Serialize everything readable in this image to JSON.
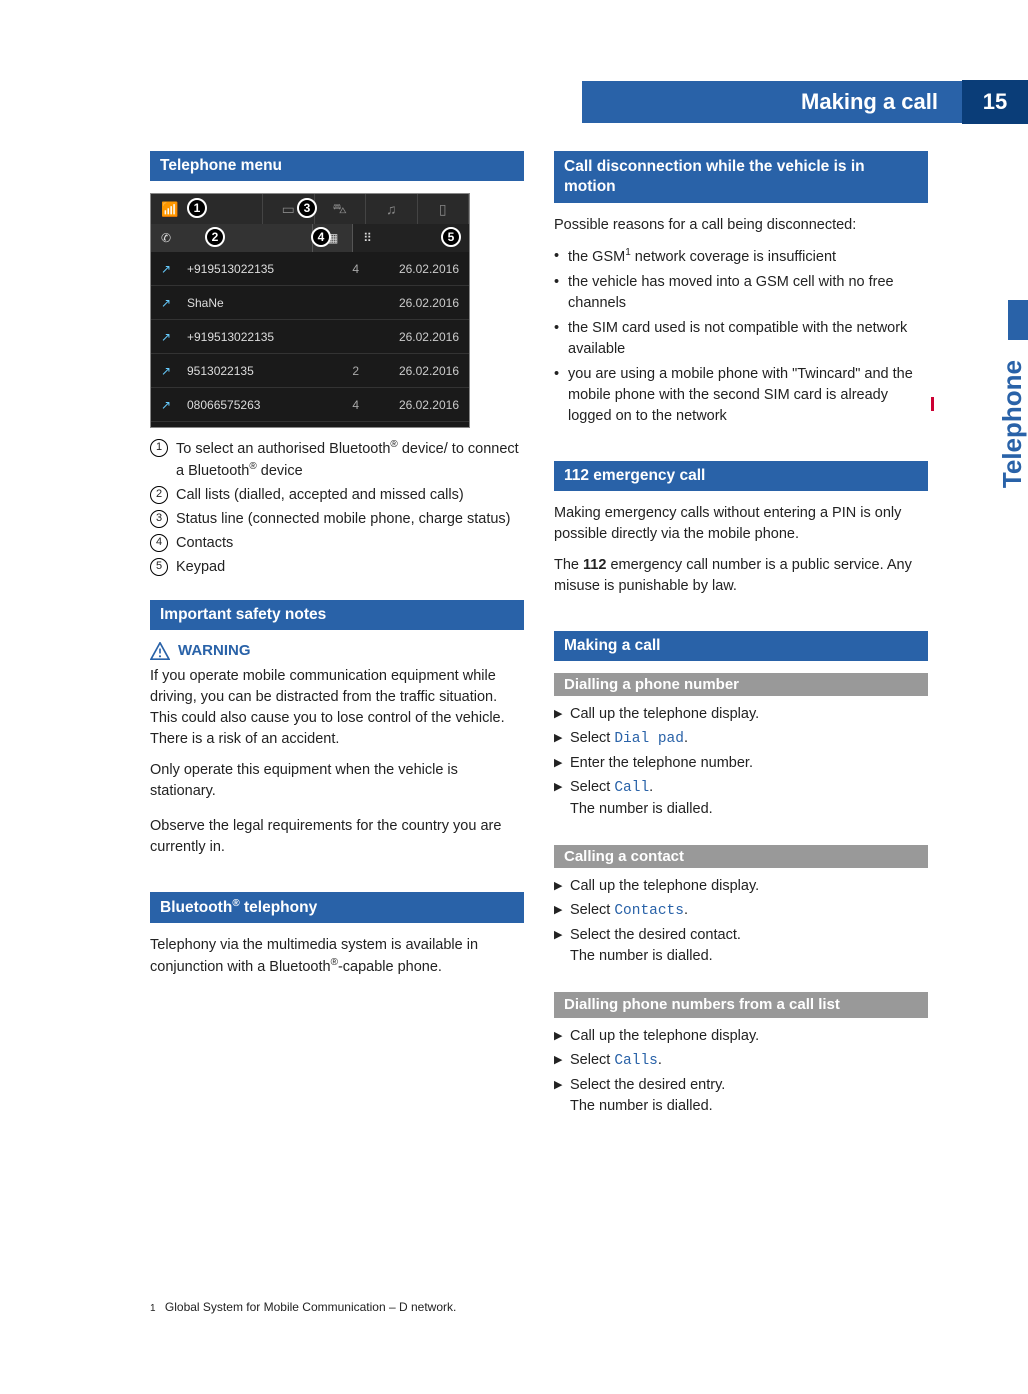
{
  "header": {
    "title": "Making a call",
    "page_number": "15",
    "side_tab": "Telephone"
  },
  "left": {
    "telephone_menu_head": "Telephone menu",
    "screenshot": {
      "rows": [
        {
          "icon": "↗",
          "number": "+919513022135",
          "count": "4",
          "date": "26.02.2016"
        },
        {
          "icon": "↗",
          "number": "ShaNe",
          "count": "",
          "date": "26.02.2016"
        },
        {
          "icon": "↗",
          "number": "+919513022135",
          "count": "",
          "date": "26.02.2016"
        },
        {
          "icon": "↗",
          "number": "9513022135",
          "count": "2",
          "date": "26.02.2016"
        },
        {
          "icon": "↗",
          "number": "08066575263",
          "count": "4",
          "date": "26.02.2016"
        }
      ],
      "callouts": {
        "c1": "1",
        "c2": "2",
        "c3": "3",
        "c4": "4",
        "c5": "5"
      }
    },
    "annotations": [
      {
        "n": "1",
        "text_a": "To select an authorised Bluetooth",
        "text_b": " device/ to connect a Bluetooth",
        "text_c": " device"
      },
      {
        "n": "2",
        "text": "Call lists (dialled, accepted and missed calls)"
      },
      {
        "n": "3",
        "text": "Status line (connected mobile phone, charge status)"
      },
      {
        "n": "4",
        "text": "Contacts"
      },
      {
        "n": "5",
        "text": "Keypad"
      }
    ],
    "safety_head": "Important safety notes",
    "warning_label": "WARNING",
    "warning_para1": "If you operate mobile communication equipment while driving, you can be distracted from the traffic situation. This could also cause you to lose control of the vehicle. There is a risk of an accident.",
    "warning_para2": "Only operate this equipment when the vehicle is stationary.",
    "safety_para": "Observe the legal requirements for the country you are currently in.",
    "bt_head": "Bluetooth® telephony",
    "bt_para_a": "Telephony via the multimedia system is available in conjunction with a Bluetooth",
    "bt_para_b": "-capable phone."
  },
  "right": {
    "disconnect_head": "Call disconnection while the vehicle is in motion",
    "disconnect_intro": "Possible reasons for a call being disconnected:",
    "disconnect_bullets": [
      {
        "pre": "the GSM",
        "sup": "1",
        "post": " network coverage is insufficient"
      },
      {
        "text": "the vehicle has moved into a GSM cell with no free channels"
      },
      {
        "text": "the SIM card used is not compatible with the network available"
      },
      {
        "text": "you are using a mobile phone with \"Twincard\" and the mobile phone with the second SIM card is already logged on to the network"
      }
    ],
    "emergency_head": "112 emergency call",
    "emergency_p1": "Making emergency calls without entering a PIN is only possible directly via the mobile phone.",
    "emergency_p2a": "The ",
    "emergency_p2b": "112",
    "emergency_p2c": " emergency call number is a public service. Any misuse is punishable by law.",
    "making_head": "Making a call",
    "dial_sub": "Dialling a phone number",
    "dial_steps": {
      "s1": "Call up the telephone display.",
      "s2a": "Select ",
      "s2b": "Dial pad",
      "s2c": ".",
      "s3": "Enter the telephone number.",
      "s4a": "Select ",
      "s4b": "Call",
      "s4c": ".",
      "s4r": "The number is dialled."
    },
    "contact_sub": "Calling a contact",
    "contact_steps": {
      "s1": "Call up the telephone display.",
      "s2a": "Select ",
      "s2b": "Contacts",
      "s2c": ".",
      "s3": "Select the desired contact.",
      "s3r": "The number is dialled."
    },
    "calllist_sub": "Dialling phone numbers from a call list",
    "calllist_steps": {
      "s1": "Call up the telephone display.",
      "s2a": "Select ",
      "s2b": "Calls",
      "s2c": ".",
      "s3": "Select the desired entry.",
      "s3r": "The number is dialled."
    }
  },
  "footnote": {
    "num": "1",
    "text": "Global System for Mobile Communication – D network."
  },
  "reg_mark": "®"
}
